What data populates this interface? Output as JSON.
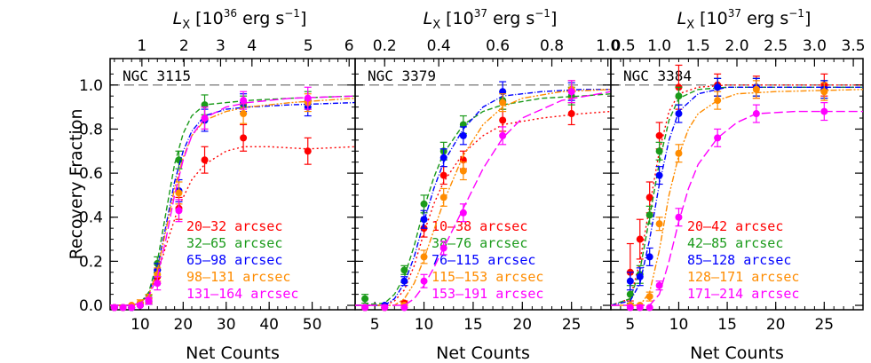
{
  "figure": {
    "ylabel": "Recovery Fraction",
    "xlabel": "Net Counts",
    "top_axis_symbol": "L",
    "top_axis_subscript": "X",
    "top_axis_units_pre": "[10",
    "top_axis_units_post": "erg s",
    "top_axis_units_neg": "−1",
    "top_axis_units_close": "]",
    "reference_line": 1.0,
    "ylim": [
      -0.02,
      1.12
    ],
    "yticks": [
      0.0,
      0.2,
      0.4,
      0.6,
      0.8,
      1.0
    ],
    "ytick_labels": [
      "0.0",
      "0.2",
      "0.4",
      "0.6",
      "0.8",
      "1.0"
    ]
  },
  "colors": {
    "s1": "#ff0000",
    "s2": "#1a9a1a",
    "s3": "#0000ff",
    "s4": "#ff8c00",
    "s5": "#ff00ff"
  },
  "chart_data": [
    {
      "type": "line",
      "panel": "NGC 3115",
      "top_exp": "36",
      "xlabel": "Net Counts",
      "ylabel": "Recovery Fraction",
      "xlim": [
        3,
        60
      ],
      "xticks": [
        10,
        20,
        30,
        40,
        50
      ],
      "top_ticks": [
        1,
        2,
        3,
        4,
        5,
        6
      ],
      "top_tick_labels": [
        "1",
        "2",
        "3",
        "4",
        "5",
        "6"
      ],
      "top_ticks_x": [
        10.4,
        20.2,
        28.7,
        36.0,
        49.1,
        58.6
      ],
      "series": [
        {
          "name": "20–32 arcsec",
          "color_key": "s1",
          "dash": "2,3",
          "x": [
            4,
            6,
            8,
            10,
            12,
            14,
            19,
            25,
            34,
            49
          ],
          "y": [
            -0.01,
            -0.01,
            -0.01,
            0.01,
            0.02,
            0.13,
            0.44,
            0.66,
            0.76,
            0.7
          ],
          "err": [
            0,
            0,
            0,
            0,
            0.015,
            0.03,
            0.05,
            0.06,
            0.06,
            0.06
          ],
          "curve_x": [
            3,
            8,
            10,
            12,
            14,
            16,
            19,
            22,
            25,
            30,
            34,
            40,
            49,
            60
          ],
          "curve_y": [
            0.0,
            0.0,
            0.01,
            0.05,
            0.14,
            0.27,
            0.45,
            0.57,
            0.64,
            0.7,
            0.72,
            0.72,
            0.71,
            0.72
          ]
        },
        {
          "name": "32–65 arcsec",
          "color_key": "s2",
          "dash": "6,3",
          "x": [
            4,
            6,
            8,
            10,
            12,
            14,
            19,
            25,
            34,
            49
          ],
          "y": [
            -0.01,
            -0.01,
            -0.01,
            0.01,
            0.03,
            0.19,
            0.66,
            0.91,
            0.91,
            0.93
          ],
          "err": [
            0,
            0,
            0,
            0,
            0.015,
            0.03,
            0.04,
            0.045,
            0.04,
            0.04
          ],
          "curve_x": [
            3,
            8,
            10,
            12,
            14,
            16,
            18,
            20,
            22,
            25,
            30,
            35,
            45,
            60
          ],
          "curve_y": [
            0.0,
            0.0,
            0.01,
            0.06,
            0.2,
            0.42,
            0.64,
            0.78,
            0.86,
            0.91,
            0.92,
            0.93,
            0.94,
            0.95
          ]
        },
        {
          "name": "65–98 arcsec",
          "color_key": "s3",
          "dash": "6,2,1,2",
          "x": [
            4,
            6,
            8,
            10,
            12,
            14,
            19,
            25,
            34,
            49
          ],
          "y": [
            -0.01,
            -0.01,
            -0.01,
            0.0,
            0.02,
            0.16,
            0.52,
            0.84,
            0.92,
            0.9
          ],
          "err": [
            0,
            0,
            0,
            0,
            0.015,
            0.03,
            0.05,
            0.05,
            0.04,
            0.04
          ],
          "curve_x": [
            3,
            8,
            10,
            12,
            14,
            16,
            18,
            20,
            22,
            25,
            30,
            35,
            45,
            60
          ],
          "curve_y": [
            0.0,
            0.0,
            0.01,
            0.05,
            0.17,
            0.36,
            0.56,
            0.7,
            0.79,
            0.86,
            0.89,
            0.9,
            0.91,
            0.92
          ]
        },
        {
          "name": "98–131 arcsec",
          "color_key": "s4",
          "dash": "2,2,2,2,7,2",
          "x": [
            4,
            6,
            8,
            10,
            12,
            14,
            19,
            25,
            34,
            49
          ],
          "y": [
            -0.01,
            -0.01,
            0.0,
            0.01,
            0.03,
            0.14,
            0.51,
            0.85,
            0.87,
            0.92
          ],
          "err": [
            0,
            0,
            0,
            0.015,
            0.02,
            0.03,
            0.05,
            0.05,
            0.045,
            0.04
          ],
          "curve_x": [
            3,
            8,
            10,
            12,
            14,
            16,
            18,
            20,
            22,
            25,
            30,
            35,
            45,
            60
          ],
          "curve_y": [
            0.0,
            0.0,
            0.01,
            0.05,
            0.16,
            0.34,
            0.53,
            0.67,
            0.77,
            0.84,
            0.88,
            0.9,
            0.92,
            0.94
          ]
        },
        {
          "name": "131–164 arcsec",
          "color_key": "s5",
          "dash": "10,4",
          "x": [
            4,
            6,
            8,
            10,
            12,
            14,
            19,
            25,
            34,
            49
          ],
          "y": [
            -0.01,
            -0.01,
            -0.01,
            0.0,
            0.02,
            0.1,
            0.43,
            0.85,
            0.93,
            0.94
          ],
          "err": [
            0,
            0,
            0,
            0,
            0.015,
            0.03,
            0.05,
            0.05,
            0.04,
            0.05
          ],
          "curve_x": [
            3,
            8,
            10,
            12,
            14,
            16,
            18,
            20,
            22,
            25,
            30,
            35,
            45,
            60
          ],
          "curve_y": [
            0.0,
            0.0,
            0.01,
            0.04,
            0.13,
            0.3,
            0.5,
            0.66,
            0.77,
            0.85,
            0.9,
            0.92,
            0.94,
            0.95
          ]
        }
      ]
    },
    {
      "type": "line",
      "panel": "NGC 3379",
      "top_exp": "37",
      "xlabel": "Net Counts",
      "ylabel": "Recovery Fraction",
      "xlim": [
        3,
        29
      ],
      "xticks": [
        5,
        10,
        15,
        20,
        25
      ],
      "top_ticks": [
        0.2,
        0.4,
        0.6,
        0.8,
        1.0
      ],
      "top_tick_labels": [
        "0.2",
        "0.4",
        "0.6",
        "0.8",
        "1.0"
      ],
      "top_ticks_x": [
        6.0,
        11.5,
        17.5,
        23.0,
        28.7
      ],
      "series": [
        {
          "name": "10–38 arcsec",
          "color_key": "s1",
          "dash": "2,3",
          "x": [
            4,
            6,
            8,
            10,
            12,
            14,
            18,
            25
          ],
          "y": [
            -0.01,
            -0.01,
            0.01,
            0.35,
            0.59,
            0.66,
            0.84,
            0.87
          ],
          "err": [
            0,
            0,
            0.01,
            0.04,
            0.04,
            0.04,
            0.05,
            0.05
          ],
          "curve_x": [
            3,
            6,
            7,
            8,
            9,
            10,
            11,
            12,
            14,
            16,
            18,
            22,
            26,
            29
          ],
          "curve_y": [
            0.0,
            0.0,
            0.02,
            0.07,
            0.18,
            0.33,
            0.46,
            0.56,
            0.69,
            0.77,
            0.82,
            0.85,
            0.87,
            0.88
          ]
        },
        {
          "name": "38–76 arcsec",
          "color_key": "s2",
          "dash": "6,3",
          "x": [
            4,
            6,
            8,
            10,
            12,
            14,
            18,
            25
          ],
          "y": [
            0.03,
            -0.01,
            0.16,
            0.46,
            0.7,
            0.82,
            0.93,
            0.95
          ],
          "err": [
            0.02,
            0,
            0.02,
            0.04,
            0.04,
            0.04,
            0.04,
            0.04
          ],
          "curve_x": [
            3,
            6,
            7,
            8,
            9,
            10,
            11,
            12,
            14,
            16,
            18,
            22,
            26,
            29
          ],
          "curve_y": [
            0.0,
            0.01,
            0.05,
            0.13,
            0.27,
            0.44,
            0.58,
            0.69,
            0.82,
            0.88,
            0.91,
            0.94,
            0.95,
            0.96
          ]
        },
        {
          "name": "76–115 arcsec",
          "color_key": "s3",
          "dash": "6,2,1,2",
          "x": [
            4,
            6,
            8,
            10,
            12,
            14,
            18,
            25
          ],
          "y": [
            -0.01,
            0.0,
            0.11,
            0.39,
            0.67,
            0.77,
            0.97,
            0.97
          ],
          "err": [
            0,
            0,
            0.02,
            0.04,
            0.04,
            0.04,
            0.045,
            0.04
          ],
          "curve_x": [
            3,
            6,
            7,
            8,
            9,
            10,
            11,
            12,
            14,
            16,
            18,
            22,
            26,
            29
          ],
          "curve_y": [
            0.0,
            0.0,
            0.03,
            0.1,
            0.22,
            0.38,
            0.53,
            0.65,
            0.8,
            0.9,
            0.95,
            0.97,
            0.98,
            0.98
          ]
        },
        {
          "name": "115–153 arcsec",
          "color_key": "s4",
          "dash": "2,2,2,2,7,2",
          "x": [
            4,
            6,
            8,
            10,
            12,
            14,
            18,
            25
          ],
          "y": [
            -0.01,
            -0.01,
            0.0,
            0.22,
            0.49,
            0.61,
            0.92,
            0.98
          ],
          "err": [
            0,
            0,
            0.01,
            0.03,
            0.04,
            0.04,
            0.04,
            0.04
          ],
          "curve_x": [
            3,
            7,
            8,
            9,
            10,
            11,
            12,
            14,
            16,
            18,
            20,
            24,
            29
          ],
          "curve_y": [
            0.0,
            0.0,
            0.03,
            0.1,
            0.21,
            0.34,
            0.47,
            0.68,
            0.82,
            0.9,
            0.94,
            0.97,
            0.98
          ]
        },
        {
          "name": "153–191 arcsec",
          "color_key": "s5",
          "dash": "10,4",
          "x": [
            4,
            6,
            8,
            10,
            12,
            14,
            18,
            25
          ],
          "y": [
            -0.01,
            -0.01,
            -0.01,
            0.11,
            0.26,
            0.42,
            0.77,
            0.97
          ],
          "err": [
            0,
            0,
            0,
            0.03,
            0.03,
            0.04,
            0.04,
            0.05
          ],
          "curve_x": [
            3,
            8,
            9,
            10,
            11,
            12,
            13,
            14,
            16,
            18,
            20,
            24,
            29
          ],
          "curve_y": [
            0.0,
            0.0,
            0.03,
            0.09,
            0.17,
            0.26,
            0.35,
            0.44,
            0.62,
            0.76,
            0.85,
            0.93,
            0.97
          ]
        }
      ]
    },
    {
      "type": "line",
      "panel": "NGC 3384",
      "top_exp": "37",
      "xlabel": "Net Counts",
      "ylabel": "Recovery Fraction",
      "xlim": [
        3,
        29
      ],
      "xticks": [
        5,
        10,
        15,
        20,
        25
      ],
      "top_ticks": [
        0.5,
        1.0,
        1.5,
        2.0,
        2.5,
        3.0,
        3.5
      ],
      "top_tick_labels": [
        "0.5",
        "1.0",
        "1.5",
        "2.0",
        "2.5",
        "3.0",
        "3.5"
      ],
      "top_ticks_x": [
        4.3,
        8.0,
        12.0,
        16.0,
        20.0,
        24.0,
        28.0
      ],
      "series": [
        {
          "name": "20–42 arcsec",
          "color_key": "s1",
          "dash": "2,3",
          "x": [
            5,
            6,
            7,
            8,
            10,
            14,
            18,
            25
          ],
          "y": [
            0.15,
            0.3,
            0.49,
            0.77,
            0.99,
            1.0,
            0.99,
            1.0
          ],
          "err": [
            0.13,
            0.09,
            0.07,
            0.06,
            0.1,
            0.05,
            0.05,
            0.05
          ],
          "curve_x": [
            3,
            5,
            6,
            7,
            8,
            9,
            10,
            12,
            15,
            20,
            29
          ],
          "curve_y": [
            0.0,
            0.03,
            0.2,
            0.45,
            0.7,
            0.88,
            0.96,
            0.99,
            1.0,
            1.0,
            1.0
          ]
        },
        {
          "name": "42–85 arcsec",
          "color_key": "s2",
          "dash": "6,3",
          "x": [
            5,
            6,
            7,
            8,
            10,
            14,
            18,
            25
          ],
          "y": [
            0.05,
            0.14,
            0.41,
            0.7,
            0.95,
            0.99,
            0.99,
            0.98
          ],
          "err": [
            0.04,
            0.04,
            0.04,
            0.04,
            0.04,
            0.04,
            0.04,
            0.04
          ],
          "curve_x": [
            3,
            5,
            6,
            7,
            8,
            9,
            10,
            12,
            15,
            20,
            29
          ],
          "curve_y": [
            0.0,
            0.03,
            0.16,
            0.4,
            0.65,
            0.84,
            0.94,
            0.98,
            0.99,
            0.99,
            0.99
          ]
        },
        {
          "name": "85–128 arcsec",
          "color_key": "s3",
          "dash": "6,2,1,2",
          "x": [
            5,
            6,
            7,
            8,
            10,
            14,
            18,
            25
          ],
          "y": [
            0.11,
            0.13,
            0.22,
            0.59,
            0.87,
            0.99,
            0.99,
            0.98
          ],
          "err": [
            0.04,
            0.04,
            0.04,
            0.04,
            0.04,
            0.04,
            0.04,
            0.04
          ],
          "curve_x": [
            3,
            5,
            6,
            7,
            8,
            9,
            10,
            12,
            15,
            20,
            29
          ],
          "curve_y": [
            0.0,
            0.02,
            0.1,
            0.3,
            0.55,
            0.75,
            0.88,
            0.96,
            0.99,
            0.99,
            0.99
          ]
        },
        {
          "name": "128–171 arcsec",
          "color_key": "s4",
          "dash": "2,2,2,2,7,2",
          "x": [
            5,
            6,
            7,
            8,
            10,
            14,
            18,
            25
          ],
          "y": [
            0.0,
            0.0,
            0.04,
            0.37,
            0.69,
            0.93,
            0.98,
            0.97
          ],
          "err": [
            0,
            0,
            0.02,
            0.03,
            0.04,
            0.04,
            0.04,
            0.04
          ],
          "curve_x": [
            3,
            6,
            7,
            8,
            9,
            10,
            11,
            12,
            14,
            16,
            20,
            29
          ],
          "curve_y": [
            0.0,
            0.0,
            0.06,
            0.25,
            0.5,
            0.68,
            0.8,
            0.87,
            0.93,
            0.96,
            0.97,
            0.98
          ]
        },
        {
          "name": "171–214 arcsec",
          "color_key": "s5",
          "dash": "10,4",
          "x": [
            5,
            6,
            7,
            8,
            10,
            14,
            18,
            25
          ],
          "y": [
            -0.01,
            -0.01,
            -0.01,
            0.09,
            0.4,
            0.76,
            0.87,
            0.88
          ],
          "err": [
            0,
            0,
            0,
            0.02,
            0.04,
            0.04,
            0.04,
            0.04
          ],
          "curve_x": [
            3,
            7,
            8,
            9,
            10,
            11,
            12,
            14,
            16,
            18,
            22,
            29
          ],
          "curve_y": [
            0.0,
            0.0,
            0.05,
            0.2,
            0.38,
            0.53,
            0.64,
            0.76,
            0.83,
            0.87,
            0.88,
            0.88
          ]
        }
      ]
    }
  ]
}
